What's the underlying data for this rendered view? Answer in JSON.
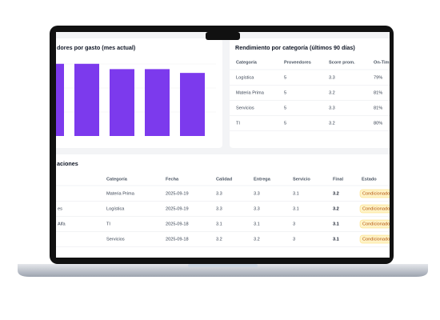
{
  "spend_card": {
    "title": "dores por gasto (mes actual)",
    "bar_values": [
      95,
      95,
      88,
      88,
      83
    ],
    "bar_color": "#7c3aed",
    "ylim": [
      0,
      100
    ]
  },
  "category_card": {
    "title": "Rendimiento por categoría (últimos 90 días)",
    "headers": [
      "Categoría",
      "Proveedores",
      "Score prom.",
      "On-Tim"
    ],
    "rows": [
      [
        "Logística",
        "5",
        "3.3",
        "79%"
      ],
      [
        "Materia Prima",
        "5",
        "3.2",
        "81%"
      ],
      [
        "Servicios",
        "5",
        "3.3",
        "81%"
      ],
      [
        "TI",
        "5",
        "3.2",
        "80%"
      ]
    ]
  },
  "evaluations_card": {
    "title": "aciones",
    "headers": [
      "Categoría",
      "Fecha",
      "Calidad",
      "Entrega",
      "Servicio",
      "Final",
      "Estado"
    ],
    "rows": [
      {
        "cells": [
          "Materia Prima",
          "2025-09-19",
          "3.3",
          "3.3",
          "3.1",
          "3.2",
          "Condicionado"
        ]
      },
      {
        "supplier": "es",
        "cells": [
          "Logística",
          "2025-09-19",
          "3.3",
          "3.3",
          "3.1",
          "3.2",
          "Condicionado"
        ]
      },
      {
        "supplier": "Alfa",
        "cells": [
          "TI",
          "2025-09-18",
          "3.1",
          "3.1",
          "3",
          "3.1",
          "Condicionado"
        ]
      },
      {
        "cells": [
          "Servicios",
          "2025-09-18",
          "3.2",
          "3.2",
          "3",
          "3.1",
          "Condicionado"
        ]
      }
    ]
  }
}
